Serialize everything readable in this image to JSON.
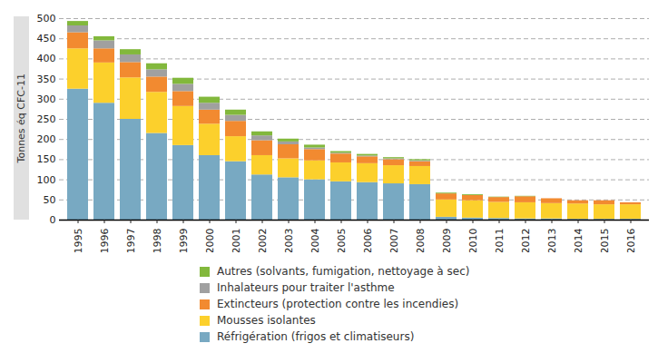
{
  "chart_data": {
    "type": "bar",
    "stacked": true,
    "grid": true,
    "y_label": "Tonnes éq CFC-11",
    "categories": [
      "1995",
      "1996",
      "1997",
      "1998",
      "1999",
      "2000",
      "2001",
      "2002",
      "2003",
      "2004",
      "2005",
      "2006",
      "2007",
      "2008",
      "2009",
      "2010",
      "2011",
      "2012",
      "2013",
      "2014",
      "2015",
      "2016"
    ],
    "ylim": [
      0,
      500
    ],
    "yticks": [
      0,
      50,
      100,
      150,
      200,
      250,
      300,
      350,
      400,
      450,
      500
    ],
    "series": [
      {
        "name": "Réfrigération (frigos et climatiseurs)",
        "color": "#78a9c2",
        "values": [
          325,
          290,
          250,
          215,
          185,
          160,
          145,
          112,
          105,
          100,
          95,
          93,
          90,
          88,
          7,
          5,
          4,
          3,
          3,
          2,
          2,
          2
        ]
      },
      {
        "name": "Mousses isolantes",
        "color": "#fcd02c",
        "values": [
          100,
          100,
          103,
          102,
          97,
          78,
          62,
          48,
          47,
          47,
          47,
          47,
          45,
          45,
          43,
          43,
          40,
          40,
          38,
          38,
          36,
          36
        ]
      },
      {
        "name": "Extincteurs (protection contre les incendies)",
        "color": "#f28a30",
        "values": [
          40,
          35,
          38,
          38,
          37,
          35,
          38,
          37,
          35,
          28,
          22,
          17,
          15,
          12,
          15,
          13,
          12,
          15,
          12,
          8,
          10,
          5
        ]
      },
      {
        "name": "Inhalateurs pour traiter l'asthme",
        "color": "#a0a0a0",
        "values": [
          17,
          20,
          19,
          18,
          18,
          17,
          15,
          12,
          7,
          4,
          2,
          2,
          2,
          2,
          0,
          0,
          0,
          0,
          0,
          0,
          0,
          0
        ]
      },
      {
        "name": "Autres (solvants, fumigation, nettoyage à sec)",
        "color": "#82b83c",
        "values": [
          11,
          10,
          13,
          15,
          15,
          15,
          13,
          10,
          7,
          7,
          4,
          4,
          3,
          3,
          2,
          2,
          1,
          1,
          0,
          0,
          0,
          0
        ]
      }
    ]
  }
}
